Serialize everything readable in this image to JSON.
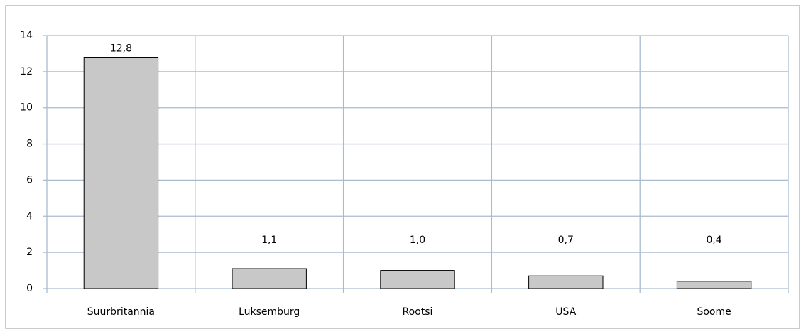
{
  "chart_data": {
    "type": "bar",
    "categories": [
      "Suurbritannia",
      "Luksemburg",
      "Rootsi",
      "USA",
      "Soome"
    ],
    "values": [
      12.8,
      1.1,
      1.0,
      0.7,
      0.4
    ],
    "value_labels": [
      "12,8",
      "1,1",
      "1,0",
      "0,7",
      "0,4"
    ],
    "color": "#c8c8c8",
    "ylim": [
      0,
      14
    ],
    "yticks": [
      0,
      2,
      4,
      6,
      8,
      10,
      12,
      14
    ],
    "grid": true
  }
}
